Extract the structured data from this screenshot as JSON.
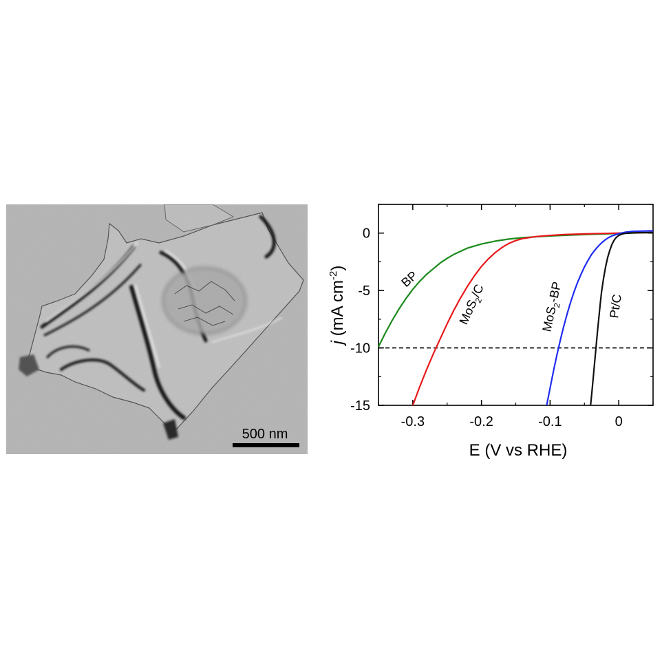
{
  "tem_image": {
    "scale_bar_label": "500 nm"
  },
  "chart_data": {
    "type": "line",
    "title": "",
    "xlabel": "E (V vs RHE)",
    "ylabel_italic": "j",
    "ylabel_rest": " (mA cm",
    "ylabel_sup": "-2",
    "ylabel_close": ")",
    "xlim": [
      -0.35,
      0.05
    ],
    "ylim": [
      -15,
      2.5
    ],
    "xticks": [
      -0.3,
      -0.2,
      -0.1,
      0
    ],
    "xtick_labels": [
      "-0.3",
      "-0.2",
      "-0.1",
      "0"
    ],
    "yticks": [
      0,
      -5,
      -10,
      -15
    ],
    "ytick_labels": [
      "0",
      "-5",
      "-10",
      "-15"
    ],
    "reference_line": {
      "y": -10,
      "style": "dashed"
    },
    "series": [
      {
        "key": "BP",
        "color": "#1a8a1a",
        "label": "BP",
        "x": [
          -0.35,
          -0.34,
          -0.33,
          -0.32,
          -0.31,
          -0.3,
          -0.29,
          -0.28,
          -0.27,
          -0.26,
          -0.25,
          -0.24,
          -0.22,
          -0.2,
          -0.18,
          -0.16,
          -0.14,
          -0.12,
          -0.1,
          -0.08,
          -0.06,
          -0.04,
          -0.02,
          0.0,
          0.02,
          0.05
        ],
        "y": [
          -9.9,
          -8.7,
          -7.6,
          -6.6,
          -5.7,
          -4.9,
          -4.2,
          -3.6,
          -3.1,
          -2.6,
          -2.2,
          -1.85,
          -1.3,
          -0.95,
          -0.7,
          -0.52,
          -0.4,
          -0.32,
          -0.25,
          -0.2,
          -0.15,
          -0.11,
          -0.07,
          -0.03,
          0.0,
          0.05
        ]
      },
      {
        "key": "MoS2/C",
        "color": "#e8191b",
        "label_main": "MoS",
        "label_sub": "2",
        "label_rest": "/C",
        "x": [
          -0.3,
          -0.29,
          -0.28,
          -0.27,
          -0.26,
          -0.25,
          -0.24,
          -0.23,
          -0.22,
          -0.21,
          -0.2,
          -0.19,
          -0.18,
          -0.17,
          -0.16,
          -0.15,
          -0.14,
          -0.12,
          -0.1,
          -0.08,
          -0.05,
          0.0,
          0.05
        ],
        "y": [
          -15.0,
          -13.4,
          -11.9,
          -10.5,
          -9.2,
          -7.9,
          -6.7,
          -5.6,
          -4.6,
          -3.7,
          -2.9,
          -2.25,
          -1.7,
          -1.25,
          -0.9,
          -0.65,
          -0.48,
          -0.3,
          -0.2,
          -0.13,
          -0.07,
          0.0,
          0.05
        ]
      },
      {
        "key": "MoS2-BP",
        "color": "#1f2cf0",
        "label_main": "MoS",
        "label_sub": "2",
        "label_rest": "-BP",
        "x": [
          -0.105,
          -0.1,
          -0.095,
          -0.09,
          -0.085,
          -0.08,
          -0.075,
          -0.07,
          -0.065,
          -0.06,
          -0.055,
          -0.05,
          -0.045,
          -0.04,
          -0.035,
          -0.03,
          -0.025,
          -0.02,
          -0.015,
          -0.01,
          0.0,
          0.01,
          0.02,
          0.05
        ],
        "y": [
          -15.0,
          -13.5,
          -12.0,
          -10.6,
          -9.3,
          -8.1,
          -7.0,
          -6.0,
          -5.1,
          -4.3,
          -3.6,
          -2.95,
          -2.4,
          -1.9,
          -1.5,
          -1.15,
          -0.85,
          -0.6,
          -0.4,
          -0.25,
          -0.05,
          0.08,
          0.15,
          0.2
        ]
      },
      {
        "key": "Pt/C",
        "color": "#111111",
        "label": "Pt/C",
        "x": [
          -0.041,
          -0.039,
          -0.037,
          -0.035,
          -0.033,
          -0.031,
          -0.029,
          -0.027,
          -0.025,
          -0.022,
          -0.019,
          -0.016,
          -0.013,
          -0.01,
          -0.007,
          -0.004,
          0.0,
          0.005,
          0.01,
          0.02,
          0.03,
          0.05
        ],
        "y": [
          -15.0,
          -13.8,
          -12.5,
          -11.2,
          -9.9,
          -8.6,
          -7.4,
          -6.2,
          -5.1,
          -3.9,
          -2.9,
          -2.1,
          -1.5,
          -1.0,
          -0.65,
          -0.4,
          -0.2,
          -0.08,
          -0.02,
          0.02,
          0.04,
          0.05
        ]
      }
    ]
  }
}
